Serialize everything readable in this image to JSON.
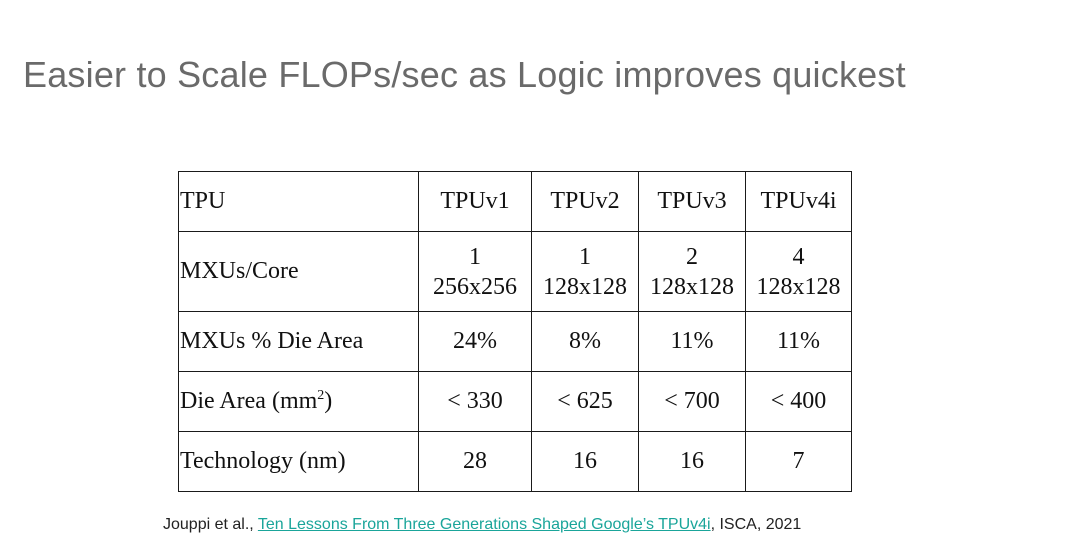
{
  "slide": {
    "title": "Easier to Scale FLOPs/sec as Logic improves quickest"
  },
  "table": {
    "header": [
      "TPU",
      "TPUv1",
      "TPUv2",
      "TPUv3",
      "TPUv4i"
    ],
    "rows": [
      {
        "label": "MXUs/Core",
        "cells": [
          {
            "line1": "1",
            "line2": "256x256"
          },
          {
            "line1": "1",
            "line2": "128x128"
          },
          {
            "line1": "2",
            "line2": "128x128"
          },
          {
            "line1": "4",
            "line2": "128x128"
          }
        ]
      },
      {
        "label": "MXUs % Die Area",
        "cells": [
          "24%",
          "8%",
          "11%",
          "11%"
        ]
      },
      {
        "label_prefix": "Die Area (mm",
        "label_sup": "2",
        "label_suffix": ")",
        "cells": [
          "< 330",
          "< 625",
          "< 700",
          "< 400"
        ]
      },
      {
        "label": "Technology (nm)",
        "cells": [
          "28",
          "16",
          "16",
          "7"
        ]
      }
    ]
  },
  "citation": {
    "prefix": "Jouppi et al., ",
    "link_text": "Ten Lessons From Three Generations Shaped Google’s TPUv4i",
    "suffix": ", ISCA, 2021"
  },
  "colors": {
    "title": "#6a6a6a",
    "link": "#1aa59a",
    "border": "#1a1a1a"
  }
}
